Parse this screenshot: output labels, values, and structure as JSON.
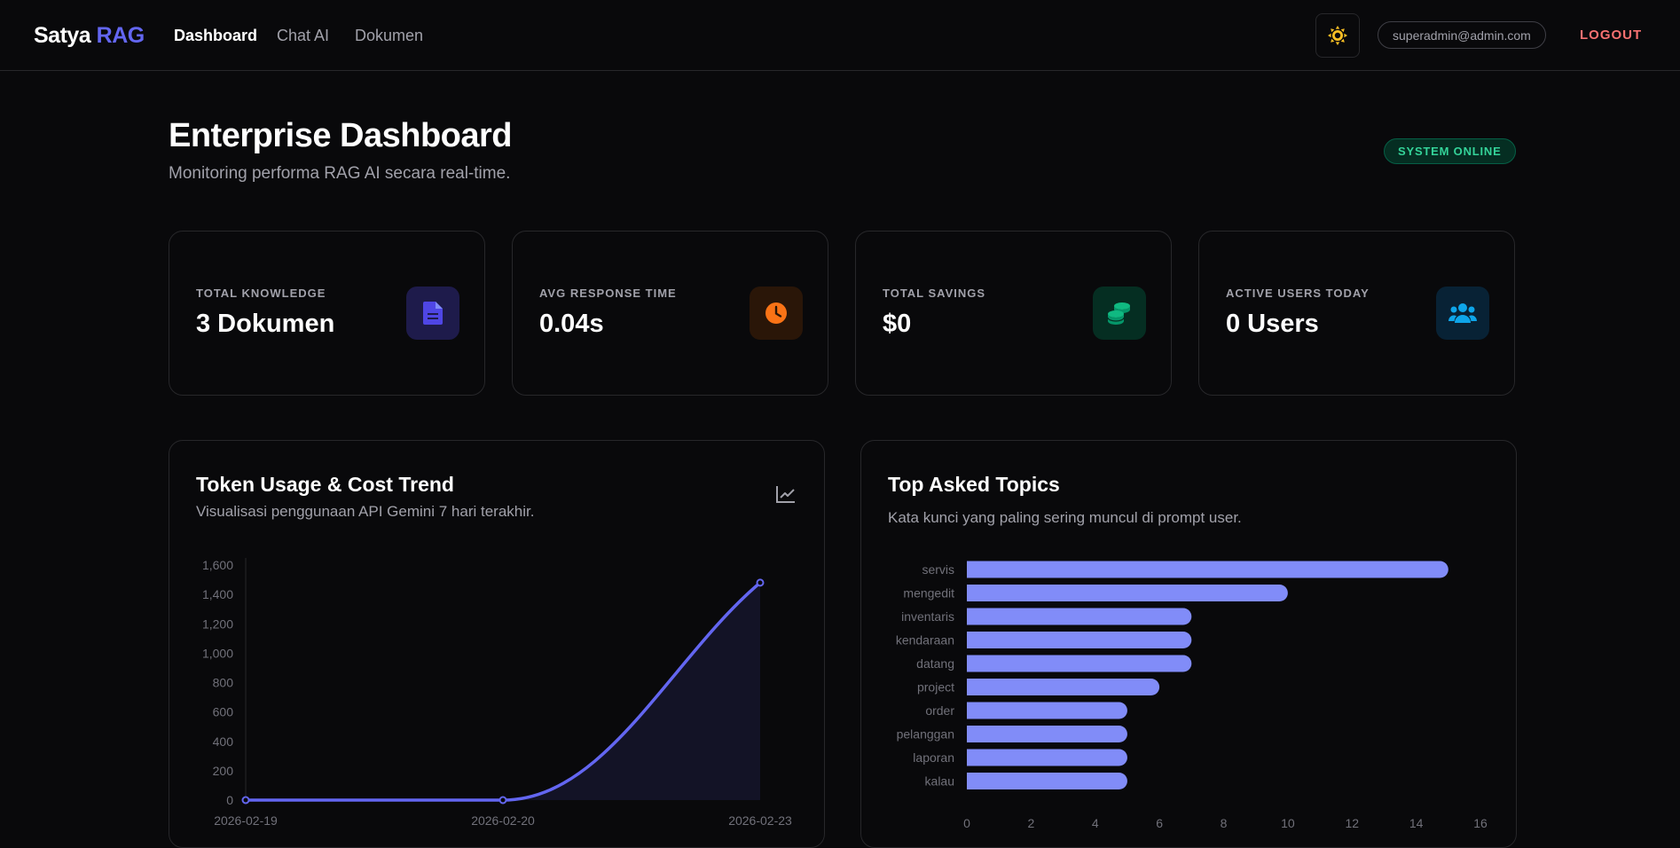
{
  "nav": {
    "brand_main": "Satya",
    "brand_accent": "RAG",
    "links": [
      "Dashboard",
      "Chat AI",
      "Dokumen"
    ],
    "email": "superadmin@admin.com",
    "logout": "LOGOUT"
  },
  "header": {
    "title": "Enterprise Dashboard",
    "subtitle": "Monitoring performa RAG AI secara real-time.",
    "status": "SYSTEM ONLINE"
  },
  "stats": [
    {
      "label": "TOTAL KNOWLEDGE",
      "value": "3 Dokumen",
      "icon": "document-icon",
      "color": "#4f46e5"
    },
    {
      "label": "AVG RESPONSE TIME",
      "value": "0.04s",
      "icon": "clock-icon",
      "color": "#f97316"
    },
    {
      "label": "TOTAL SAVINGS",
      "value": "$0",
      "icon": "coins-icon",
      "color": "#10b981"
    },
    {
      "label": "ACTIVE USERS TODAY",
      "value": "0 Users",
      "icon": "users-icon",
      "color": "#0ea5e9"
    }
  ],
  "token_panel": {
    "title": "Token Usage & Cost Trend",
    "subtitle": "Visualisasi penggunaan API Gemini 7 hari terakhir."
  },
  "topics_panel": {
    "title": "Top Asked Topics",
    "subtitle": "Kata kunci yang paling sering muncul di prompt user."
  },
  "chart_data": [
    {
      "type": "area",
      "x": [
        "2026-02-19",
        "2026-02-20",
        "2026-02-23"
      ],
      "series": [
        {
          "values": [
            0,
            0,
            1480
          ]
        }
      ],
      "ylim": [
        0,
        1600
      ],
      "yticks": [
        0,
        200,
        400,
        600,
        800,
        1000,
        1200,
        1400,
        1600
      ],
      "yticks_labels": [
        "0",
        "200",
        "400",
        "600",
        "800",
        "1,000",
        "1,200",
        "1,400",
        "1,600"
      ],
      "grid": false,
      "color": "#6366f1"
    },
    {
      "type": "bar",
      "orientation": "horizontal",
      "categories": [
        "servis",
        "mengedit",
        "inventaris",
        "kendaraan",
        "datang",
        "project",
        "order",
        "pelanggan",
        "laporan",
        "kalau"
      ],
      "values": [
        15,
        10,
        7,
        7,
        7,
        6,
        5,
        5,
        5,
        5
      ],
      "xlim": [
        0,
        16
      ],
      "xticks": [
        0,
        2,
        4,
        6,
        8,
        10,
        12,
        14,
        16
      ],
      "grid": false,
      "color": "#818cf8"
    }
  ]
}
